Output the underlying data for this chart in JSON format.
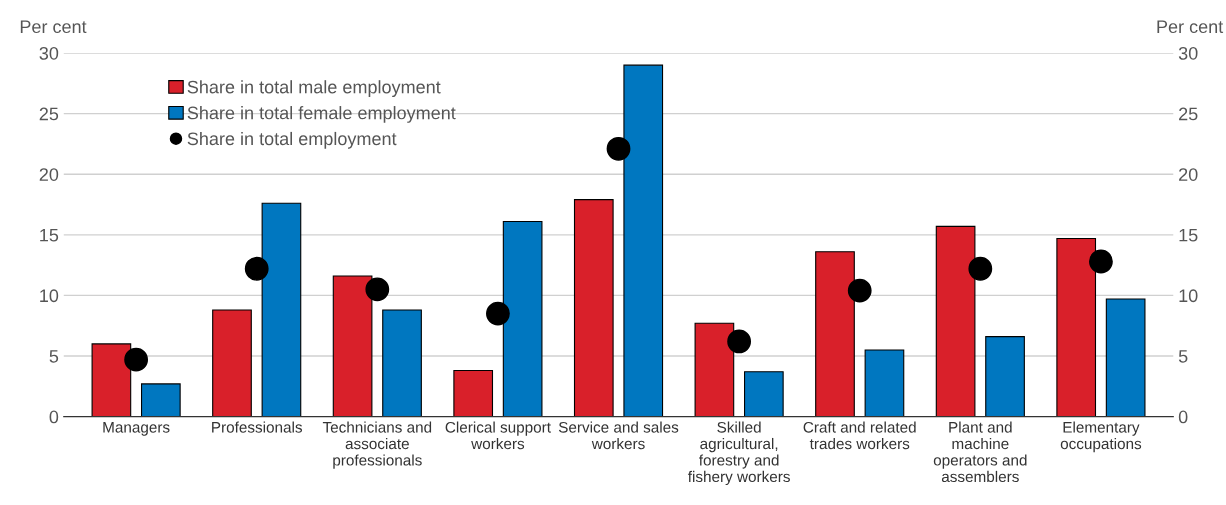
{
  "chart_data": {
    "type": "bar",
    "ylabel": "Per cent",
    "y2label": "Per cent",
    "categories": [
      "Managers",
      "Professionals",
      "Technicians and\nassociate\nprofessionals",
      "Clerical support\nworkers",
      "Service and sales\nworkers",
      "Skilled\nagricultural,\nforestry and\nfishery workers",
      "Craft and related\ntrades workers",
      "Plant and\nmachine\noperators and\nassemblers",
      "Elementary\noccupations"
    ],
    "series": [
      {
        "name": "Share in total male employment",
        "color": "#d9202a",
        "values": [
          6.0,
          8.8,
          11.6,
          3.8,
          17.9,
          7.7,
          13.6,
          15.7,
          14.7
        ]
      },
      {
        "name": "Share in total female employment",
        "color": "#0077c0",
        "values": [
          2.7,
          17.6,
          8.8,
          16.1,
          29.0,
          3.7,
          5.5,
          6.6,
          9.7
        ]
      },
      {
        "name": "Share in total employment",
        "type": "scatter",
        "color": "#000000",
        "marker": "circle",
        "values": [
          4.7,
          12.2,
          10.5,
          8.5,
          22.1,
          6.2,
          10.4,
          12.2,
          12.8
        ]
      }
    ],
    "ylim": [
      0,
      30
    ],
    "yticks": [
      0,
      5,
      10,
      15,
      20,
      25,
      30
    ],
    "y2lim": [
      0,
      30
    ],
    "y2ticks": [
      0,
      5,
      10,
      15,
      20,
      25,
      30
    ],
    "grid": "y",
    "legend": "top left"
  }
}
